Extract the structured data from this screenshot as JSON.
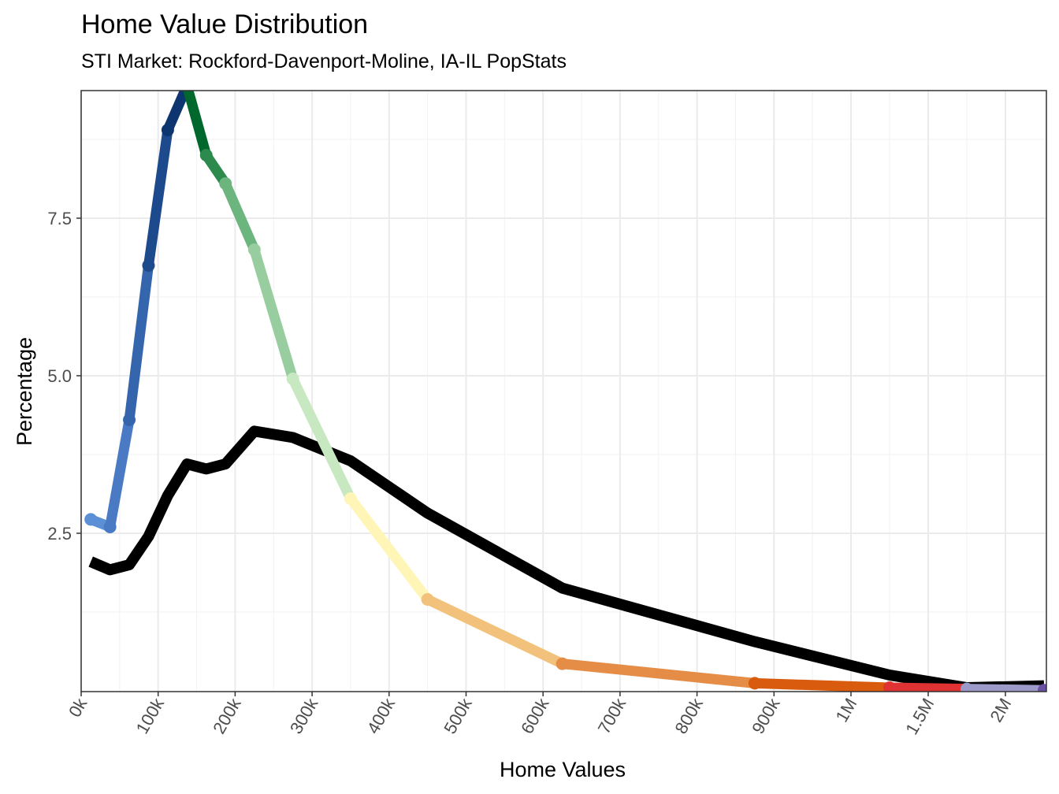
{
  "chart_data": {
    "type": "line",
    "title": "Home Value Distribution",
    "subtitle": "STI Market: Rockford-Davenport-Moline, IA-IL PopStats",
    "xlabel": "Home Values",
    "ylabel": "Percentage",
    "x_tick_labels": [
      "0k",
      "100k",
      "200k",
      "300k",
      "400k",
      "500k",
      "600k",
      "700k",
      "800k",
      "900k",
      "1M",
      "1.5M",
      "2M"
    ],
    "y_ticks": [
      2.5,
      5.0,
      7.5
    ],
    "y_tick_labels": [
      "2.5",
      "5.0",
      "7.5"
    ],
    "ylim": [
      0,
      9.5
    ],
    "grid": true,
    "legend": "none",
    "x_scale_note": "piecewise axis: linear 0k-1M, then 1M-1.5M-2M compressed",
    "series": [
      {
        "color": "#000000",
        "points": [
          {
            "x": 12.5,
            "y": 2.05
          },
          {
            "x": 37.5,
            "y": 1.92
          },
          {
            "x": 62.5,
            "y": 2.0
          },
          {
            "x": 87.5,
            "y": 2.45
          },
          {
            "x": 112.5,
            "y": 3.1
          },
          {
            "x": 137.5,
            "y": 3.6
          },
          {
            "x": 162.5,
            "y": 3.52
          },
          {
            "x": 187.5,
            "y": 3.6
          },
          {
            "x": 225,
            "y": 4.12
          },
          {
            "x": 275,
            "y": 4.02
          },
          {
            "x": 350,
            "y": 3.65
          },
          {
            "x": 450,
            "y": 2.82
          },
          {
            "x": 625,
            "y": 1.63
          },
          {
            "x": 875,
            "y": 0.78
          },
          {
            "x": 1250,
            "y": 0.25
          },
          {
            "x": 1750,
            "y": 0.05
          },
          {
            "x": 2250,
            "y": 0.08
          }
        ]
      },
      {
        "segmented": true,
        "points": [
          {
            "x": 12.5,
            "y": 2.72,
            "color": "#5b8fd6"
          },
          {
            "x": 37.5,
            "y": 2.6,
            "color": "#4a7ac4"
          },
          {
            "x": 62.5,
            "y": 4.3,
            "color": "#3565ad"
          },
          {
            "x": 87.5,
            "y": 6.75,
            "color": "#1d4a8c"
          },
          {
            "x": 112.5,
            "y": 8.9,
            "color": "#0d3670"
          },
          {
            "x": 137.5,
            "y": 9.6,
            "color": "#00682d"
          },
          {
            "x": 162.5,
            "y": 8.5,
            "color": "#2c8a4c"
          },
          {
            "x": 187.5,
            "y": 8.05,
            "color": "#6cb57f"
          },
          {
            "x": 225,
            "y": 7.0,
            "color": "#98ce9f"
          },
          {
            "x": 275,
            "y": 4.95,
            "color": "#c8e8c1"
          },
          {
            "x": 350,
            "y": 3.05,
            "color": "#fff5b6"
          },
          {
            "x": 450,
            "y": 1.45,
            "color": "#f2c27c"
          },
          {
            "x": 625,
            "y": 0.43,
            "color": "#e58d46"
          },
          {
            "x": 875,
            "y": 0.12,
            "color": "#d95b0e"
          },
          {
            "x": 1250,
            "y": 0.05,
            "color": "#e03232"
          },
          {
            "x": 1750,
            "y": 0.03,
            "color": "#9b9ac8"
          },
          {
            "x": 2250,
            "y": 0.01,
            "color": "#6a51a3"
          }
        ]
      }
    ]
  }
}
